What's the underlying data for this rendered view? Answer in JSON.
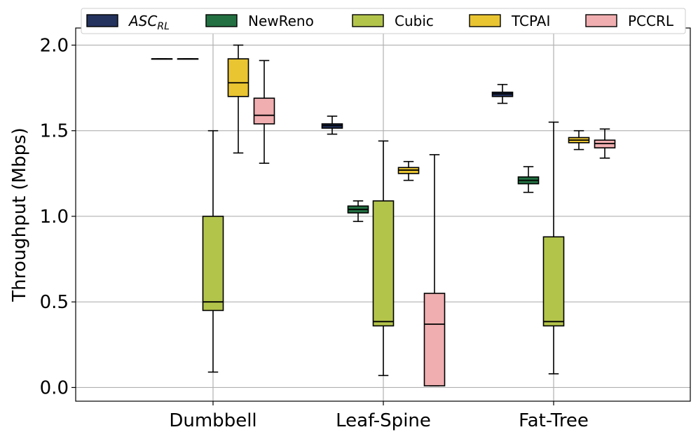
{
  "chart_data": {
    "type": "box",
    "title": "",
    "xlabel": "",
    "ylabel": "Throughput (Mbps)",
    "ylim": [
      -0.08,
      2.1
    ],
    "yticks": [
      0.0,
      0.5,
      1.0,
      1.5,
      2.0
    ],
    "ytick_labels": [
      "0.0",
      "0.5",
      "1.0",
      "1.5",
      "2.0"
    ],
    "grid": true,
    "legend_position": "top",
    "categories": [
      "Dumbbell",
      "Leaf-Spine",
      "Fat-Tree"
    ],
    "series": [
      {
        "name": "ASC",
        "name_sub": "RL",
        "color": "#24325e",
        "boxes": [
          {
            "min": 1.92,
            "q1": 1.92,
            "median": 1.92,
            "q3": 1.92,
            "max": 1.92
          },
          {
            "min": 1.48,
            "q1": 1.515,
            "median": 1.53,
            "q3": 1.54,
            "max": 1.585
          },
          {
            "min": 1.66,
            "q1": 1.7,
            "median": 1.715,
            "q3": 1.725,
            "max": 1.77
          }
        ]
      },
      {
        "name": "NewReno",
        "color": "#237042",
        "boxes": [
          {
            "min": 1.92,
            "q1": 1.92,
            "median": 1.92,
            "q3": 1.92,
            "max": 1.92
          },
          {
            "min": 0.97,
            "q1": 1.02,
            "median": 1.04,
            "q3": 1.06,
            "max": 1.09
          },
          {
            "min": 1.14,
            "q1": 1.19,
            "median": 1.21,
            "q3": 1.23,
            "max": 1.29
          }
        ]
      },
      {
        "name": "Cubic",
        "color": "#b3c44b",
        "boxes": [
          {
            "min": 0.09,
            "q1": 0.45,
            "median": 0.5,
            "q3": 1.0,
            "max": 1.5
          },
          {
            "min": 0.07,
            "q1": 0.36,
            "median": 0.385,
            "q3": 1.09,
            "max": 1.44
          },
          {
            "min": 0.08,
            "q1": 0.36,
            "median": 0.385,
            "q3": 0.88,
            "max": 1.55
          }
        ]
      },
      {
        "name": "TCPAI",
        "color": "#e9c532",
        "boxes": [
          {
            "min": 1.37,
            "q1": 1.7,
            "median": 1.78,
            "q3": 1.92,
            "max": 2.0
          },
          {
            "min": 1.21,
            "q1": 1.25,
            "median": 1.27,
            "q3": 1.285,
            "max": 1.32
          },
          {
            "min": 1.39,
            "q1": 1.43,
            "median": 1.445,
            "q3": 1.46,
            "max": 1.5
          }
        ]
      },
      {
        "name": "PCCRL",
        "color": "#f0aeb0",
        "boxes": [
          {
            "min": 1.31,
            "q1": 1.54,
            "median": 1.59,
            "q3": 1.69,
            "max": 1.91
          },
          {
            "min": 0.01,
            "q1": 0.01,
            "median": 0.37,
            "q3": 0.55,
            "max": 1.36
          },
          {
            "min": 1.34,
            "q1": 1.4,
            "median": 1.425,
            "q3": 1.445,
            "max": 1.51
          }
        ]
      }
    ]
  }
}
